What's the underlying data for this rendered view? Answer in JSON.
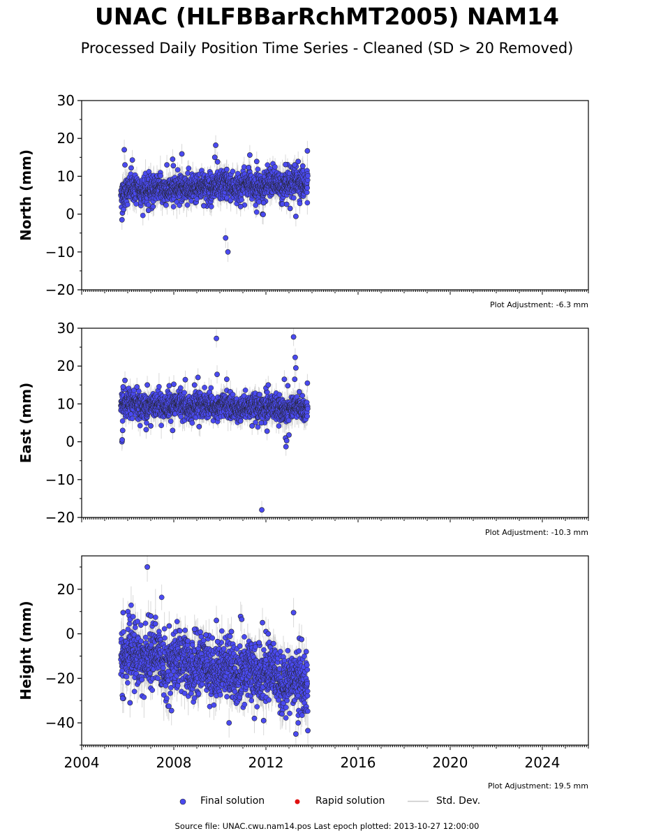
{
  "title": "UNAC (HLFBBarRchMT2005) NAM14",
  "subtitle": "Processed Daily Position Time Series - Cleaned (SD > 20 Removed)",
  "colors": {
    "final": "#4a4af0",
    "rapid": "#e01010",
    "std_dev": "#c8c8c8",
    "marker_edge": "#222222"
  },
  "legend": {
    "final": "Final solution",
    "rapid": "Rapid solution",
    "std_dev": "Std. Dev."
  },
  "source_text": "Source file: UNAC.cwu.nam14.pos  Last epoch plotted: 2013-10-27 12:00:00",
  "chart_data": [
    {
      "type": "scatter",
      "component": "north",
      "ylabel": "North (mm)",
      "xlim": [
        2004,
        2026
      ],
      "ylim": [
        -20,
        30
      ],
      "yticks": [
        -20,
        -10,
        0,
        10,
        20,
        30
      ],
      "ytick_labels": [
        "−20",
        "−10",
        "0",
        "10",
        "20",
        "30"
      ],
      "adjustment": "Plot Adjustment: -6.3 mm",
      "data_range": [
        2005.7,
        2013.82
      ],
      "series_model": {
        "baseline_start": 6.2,
        "baseline_end": 8.2,
        "noise_sd": 1.8,
        "err_sd": 2.2
      },
      "points": [
        {
          "x": 2005.75,
          "y": -1.5
        },
        {
          "x": 2005.77,
          "y": 0.3
        },
        {
          "x": 2005.82,
          "y": 1.2
        },
        {
          "x": 2005.85,
          "y": 17.0
        },
        {
          "x": 2005.88,
          "y": 13.0
        },
        {
          "x": 2006.2,
          "y": 14.3
        },
        {
          "x": 2006.15,
          "y": 12.2
        },
        {
          "x": 2006.9,
          "y": 1.0
        },
        {
          "x": 2007.1,
          "y": 2.0
        },
        {
          "x": 2007.7,
          "y": 13.0
        },
        {
          "x": 2007.95,
          "y": 14.5
        },
        {
          "x": 2007.98,
          "y": 12.8
        },
        {
          "x": 2008.35,
          "y": 15.9
        },
        {
          "x": 2009.3,
          "y": 2.2
        },
        {
          "x": 2009.82,
          "y": 18.2
        },
        {
          "x": 2009.78,
          "y": 15.0
        },
        {
          "x": 2009.9,
          "y": 13.8
        },
        {
          "x": 2010.25,
          "y": -6.3
        },
        {
          "x": 2010.35,
          "y": -10.0
        },
        {
          "x": 2010.3,
          "y": 11.8
        },
        {
          "x": 2010.9,
          "y": 2.0
        },
        {
          "x": 2011.3,
          "y": 15.6
        },
        {
          "x": 2011.25,
          "y": 12.3
        },
        {
          "x": 2011.6,
          "y": 13.9
        },
        {
          "x": 2011.85,
          "y": 0.0
        },
        {
          "x": 2011.88,
          "y": -0.1
        },
        {
          "x": 2011.9,
          "y": 3.0
        },
        {
          "x": 2012.85,
          "y": 13.1
        },
        {
          "x": 2012.9,
          "y": 2.6
        },
        {
          "x": 2013.3,
          "y": -0.6
        },
        {
          "x": 2013.4,
          "y": 13.9
        },
        {
          "x": 2013.25,
          "y": 13.0
        },
        {
          "x": 2013.6,
          "y": 12.7
        },
        {
          "x": 2013.8,
          "y": 16.7
        },
        {
          "x": 2013.05,
          "y": 1.5
        }
      ]
    },
    {
      "type": "scatter",
      "component": "east",
      "ylabel": "East (mm)",
      "xlim": [
        2004,
        2026
      ],
      "ylim": [
        -20,
        30
      ],
      "yticks": [
        -20,
        -10,
        0,
        10,
        20,
        30
      ],
      "ytick_labels": [
        "−20",
        "−10",
        "0",
        "10",
        "20",
        "30"
      ],
      "adjustment": "Plot Adjustment: -10.3 mm",
      "data_range": [
        2005.7,
        2013.82
      ],
      "series_model": {
        "baseline_start": 9.8,
        "baseline_end": 8.8,
        "noise_sd": 1.6,
        "err_sd": 2.0
      },
      "points": [
        {
          "x": 2005.75,
          "y": 0.0
        },
        {
          "x": 2005.76,
          "y": 0.5
        },
        {
          "x": 2005.78,
          "y": 3.0
        },
        {
          "x": 2005.8,
          "y": 14.5
        },
        {
          "x": 2005.88,
          "y": 16.2
        },
        {
          "x": 2006.4,
          "y": 14.5
        },
        {
          "x": 2006.8,
          "y": 3.2
        },
        {
          "x": 2006.85,
          "y": 15.0
        },
        {
          "x": 2007.0,
          "y": 4.2
        },
        {
          "x": 2007.95,
          "y": 3.0
        },
        {
          "x": 2007.8,
          "y": 14.8
        },
        {
          "x": 2008.0,
          "y": 15.2
        },
        {
          "x": 2008.5,
          "y": 16.4
        },
        {
          "x": 2008.9,
          "y": 15.0
        },
        {
          "x": 2009.05,
          "y": 17.0
        },
        {
          "x": 2009.1,
          "y": 4.0
        },
        {
          "x": 2009.85,
          "y": 27.3
        },
        {
          "x": 2009.88,
          "y": 17.8
        },
        {
          "x": 2010.3,
          "y": 16.5
        },
        {
          "x": 2010.9,
          "y": 5.5
        },
        {
          "x": 2011.4,
          "y": 4.2
        },
        {
          "x": 2011.8,
          "y": 5.0
        },
        {
          "x": 2011.82,
          "y": -18.0
        },
        {
          "x": 2012.0,
          "y": 14.2
        },
        {
          "x": 2012.1,
          "y": 15.0
        },
        {
          "x": 2012.05,
          "y": 2.8
        },
        {
          "x": 2012.8,
          "y": 16.5
        },
        {
          "x": 2012.85,
          "y": 1.0
        },
        {
          "x": 2012.87,
          "y": -1.3
        },
        {
          "x": 2012.9,
          "y": 0.3
        },
        {
          "x": 2012.95,
          "y": 14.8
        },
        {
          "x": 2013.0,
          "y": 1.8
        },
        {
          "x": 2013.2,
          "y": 27.7
        },
        {
          "x": 2013.27,
          "y": 22.3
        },
        {
          "x": 2013.3,
          "y": 19.5
        },
        {
          "x": 2013.25,
          "y": 16.5
        },
        {
          "x": 2013.45,
          "y": 13.2
        },
        {
          "x": 2013.8,
          "y": 15.5
        }
      ]
    },
    {
      "type": "scatter",
      "component": "height",
      "ylabel": "Height (mm)",
      "xlim": [
        2004,
        2026
      ],
      "ylim": [
        -50,
        35
      ],
      "yticks": [
        -40,
        -20,
        0,
        20
      ],
      "ytick_labels": [
        "−40",
        "−20",
        "0",
        "20"
      ],
      "xticks": [
        2004,
        2008,
        2012,
        2016,
        2020,
        2024
      ],
      "xtick_labels": [
        "2004",
        "2008",
        "2012",
        "2016",
        "2020",
        "2024"
      ],
      "adjustment": "Plot Adjustment: 19.5 mm",
      "data_range": [
        2005.7,
        2013.82
      ],
      "series_model": {
        "baseline_start": -9.0,
        "baseline_end": -22.0,
        "noise_sd": 6.5,
        "err_sd": 5.5
      },
      "points": [
        {
          "x": 2005.8,
          "y": 9.5
        },
        {
          "x": 2005.78,
          "y": -29.0
        },
        {
          "x": 2006.1,
          "y": -31.0
        },
        {
          "x": 2006.85,
          "y": 30.0
        },
        {
          "x": 2006.9,
          "y": 8.5
        },
        {
          "x": 2007.0,
          "y": 8.0
        },
        {
          "x": 2007.2,
          "y": 4.5
        },
        {
          "x": 2007.8,
          "y": 3.5
        },
        {
          "x": 2007.9,
          "y": -34.5
        },
        {
          "x": 2008.9,
          "y": 2.0
        },
        {
          "x": 2009.4,
          "y": -0.5
        },
        {
          "x": 2009.85,
          "y": 6.0
        },
        {
          "x": 2009.9,
          "y": -3.5
        },
        {
          "x": 2010.5,
          "y": 1.0
        },
        {
          "x": 2010.4,
          "y": -40.0
        },
        {
          "x": 2010.9,
          "y": 7.8
        },
        {
          "x": 2010.95,
          "y": 6.5
        },
        {
          "x": 2011.7,
          "y": -4.0
        },
        {
          "x": 2011.85,
          "y": 5.0
        },
        {
          "x": 2012.0,
          "y": 1.0
        },
        {
          "x": 2012.1,
          "y": 0.0
        },
        {
          "x": 2011.5,
          "y": -38.0
        },
        {
          "x": 2011.9,
          "y": -39.0
        },
        {
          "x": 2012.7,
          "y": -36.0
        },
        {
          "x": 2013.2,
          "y": 9.5
        },
        {
          "x": 2013.3,
          "y": -45.0
        },
        {
          "x": 2013.45,
          "y": -2.0
        },
        {
          "x": 2013.55,
          "y": -2.5
        },
        {
          "x": 2013.4,
          "y": -40.0
        },
        {
          "x": 2013.82,
          "y": -43.5
        },
        {
          "x": 2013.75,
          "y": -8.0
        }
      ]
    }
  ]
}
